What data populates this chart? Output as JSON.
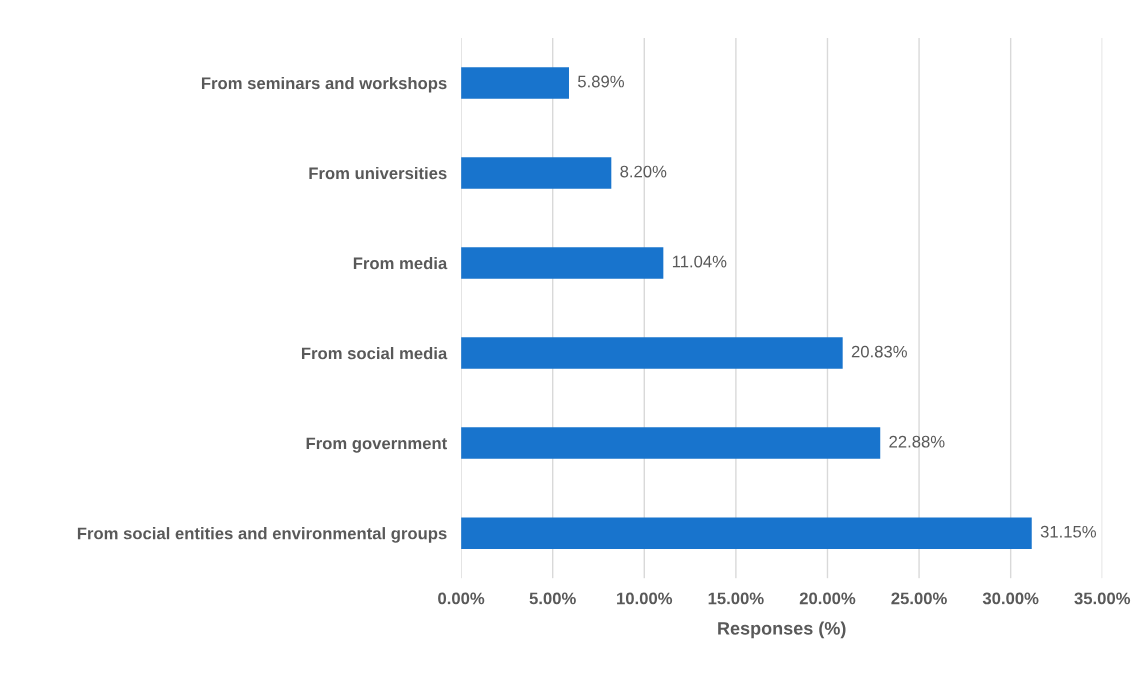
{
  "chart_data": {
    "type": "bar",
    "orientation": "horizontal",
    "xlabel": "Responses (%)",
    "categories": [
      "From seminars and workshops",
      "From universities",
      "From media",
      "From social media",
      "From government",
      "From social entities and environmental groups"
    ],
    "values": [
      5.89,
      8.2,
      11.04,
      20.83,
      22.88,
      31.15
    ],
    "value_labels": [
      "5.89%",
      "8.20%",
      "11.04%",
      "20.83%",
      "22.88%",
      "31.15%"
    ],
    "color": "#1874cd",
    "xlim": [
      0,
      35
    ],
    "xticks": [
      {
        "value": 0,
        "label": "0.00%"
      },
      {
        "value": 5,
        "label": "5.00%"
      },
      {
        "value": 10,
        "label": "10.00%"
      },
      {
        "value": 15,
        "label": "15.00%"
      },
      {
        "value": 20,
        "label": "20.00%"
      },
      {
        "value": 25,
        "label": "25.00%"
      },
      {
        "value": 30,
        "label": "30.00%"
      },
      {
        "value": 35,
        "label": "35.00%"
      }
    ],
    "grid": "x"
  }
}
